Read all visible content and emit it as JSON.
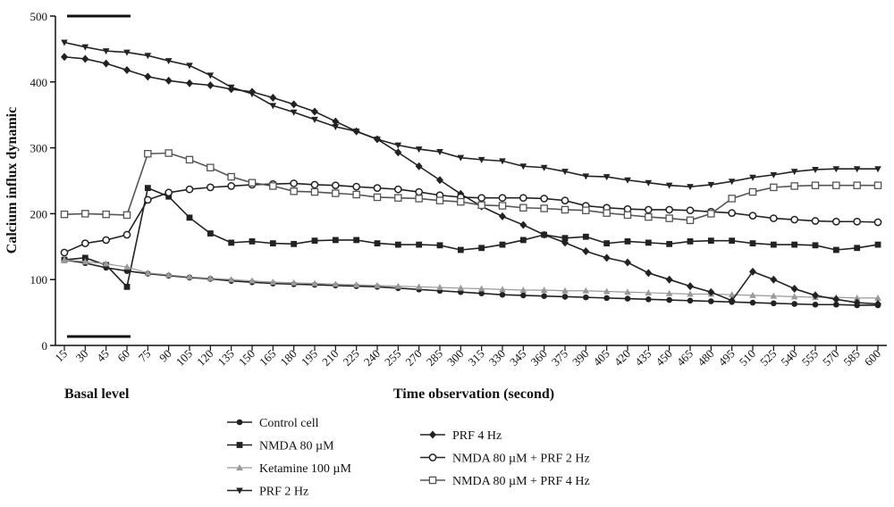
{
  "chart_data": {
    "type": "line",
    "title": "",
    "xlabel": "Time observation (second)",
    "ylabel": "Calcium influx dynamic",
    "annotation": "Basal level",
    "ylim": [
      0,
      500
    ],
    "yticks": [
      0,
      100,
      200,
      300,
      400,
      500
    ],
    "x": [
      15,
      30,
      45,
      60,
      75,
      90,
      105,
      120,
      135,
      150,
      165,
      180,
      195,
      210,
      225,
      240,
      255,
      270,
      285,
      300,
      315,
      330,
      345,
      360,
      375,
      390,
      405,
      420,
      435,
      450,
      465,
      480,
      495,
      510,
      525,
      540,
      555,
      570,
      585,
      600
    ],
    "legend_placement": "bottom-center",
    "grid": false,
    "series": [
      {
        "name": "Control cell",
        "marker": "circle-filled",
        "color": "#222222",
        "values": [
          130,
          125,
          118,
          113,
          109,
          106,
          103,
          101,
          98,
          96,
          94,
          93,
          92,
          91,
          90,
          89,
          87,
          85,
          83,
          81,
          79,
          77,
          76,
          75,
          74,
          73,
          72,
          71,
          70,
          69,
          68,
          67,
          66,
          65,
          64,
          63,
          62,
          62,
          61,
          61
        ]
      },
      {
        "name": "NMDA 80 µM",
        "marker": "square-filled",
        "color": "#222222",
        "values": [
          130,
          133,
          122,
          89,
          239,
          226,
          194,
          170,
          156,
          158,
          155,
          154,
          159,
          160,
          160,
          155,
          153,
          153,
          152,
          145,
          148,
          153,
          160,
          168,
          163,
          165,
          155,
          158,
          156,
          154,
          158,
          159,
          159,
          155,
          153,
          153,
          152,
          145,
          148,
          153
        ]
      },
      {
        "name": "Ketamine 100 µM",
        "marker": "triangle-up",
        "color": "#999999",
        "values": [
          130,
          127,
          124,
          119,
          110,
          107,
          104,
          102,
          100,
          98,
          96,
          95,
          94,
          93,
          92,
          91,
          90,
          89,
          88,
          87,
          86,
          85,
          84,
          84,
          83,
          83,
          82,
          81,
          80,
          79,
          78,
          78,
          77,
          76,
          75,
          74,
          73,
          73,
          72,
          72
        ]
      },
      {
        "name": "PRF 2 Hz",
        "marker": "triangle-down",
        "color": "#222222",
        "values": [
          460,
          453,
          447,
          445,
          440,
          432,
          425,
          410,
          392,
          382,
          364,
          354,
          343,
          332,
          325,
          313,
          304,
          298,
          294,
          285,
          282,
          280,
          272,
          270,
          264,
          257,
          256,
          251,
          247,
          243,
          241,
          244,
          249,
          255,
          259,
          264,
          267,
          268,
          268,
          268
        ]
      },
      {
        "name": "PRF 4 Hz",
        "marker": "diamond",
        "color": "#222222",
        "values": [
          438,
          435,
          428,
          418,
          408,
          402,
          398,
          395,
          389,
          385,
          376,
          366,
          355,
          340,
          325,
          313,
          293,
          272,
          251,
          230,
          211,
          196,
          183,
          168,
          156,
          143,
          133,
          126,
          110,
          100,
          90,
          81,
          68,
          112,
          100,
          86,
          76,
          70,
          65,
          63
        ]
      },
      {
        "name": "NMDA 80 µM + PRF 2 Hz",
        "marker": "circle-open",
        "color": "#222222",
        "values": [
          141,
          155,
          160,
          168,
          221,
          232,
          237,
          240,
          242,
          244,
          245,
          246,
          244,
          243,
          241,
          239,
          237,
          233,
          228,
          225,
          224,
          224,
          224,
          223,
          220,
          212,
          209,
          207,
          206,
          206,
          205,
          203,
          201,
          197,
          193,
          191,
          189,
          188,
          188,
          187
        ]
      },
      {
        "name": "NMDA 80 µM + PRF 4 Hz",
        "marker": "square-open",
        "color": "#555555",
        "values": [
          199,
          200,
          199,
          198,
          291,
          292,
          282,
          270,
          256,
          247,
          242,
          234,
          233,
          231,
          229,
          225,
          224,
          223,
          220,
          218,
          213,
          212,
          209,
          208,
          206,
          205,
          201,
          198,
          195,
          193,
          190,
          200,
          223,
          233,
          240,
          242,
          243,
          243,
          243,
          243
        ]
      }
    ]
  }
}
